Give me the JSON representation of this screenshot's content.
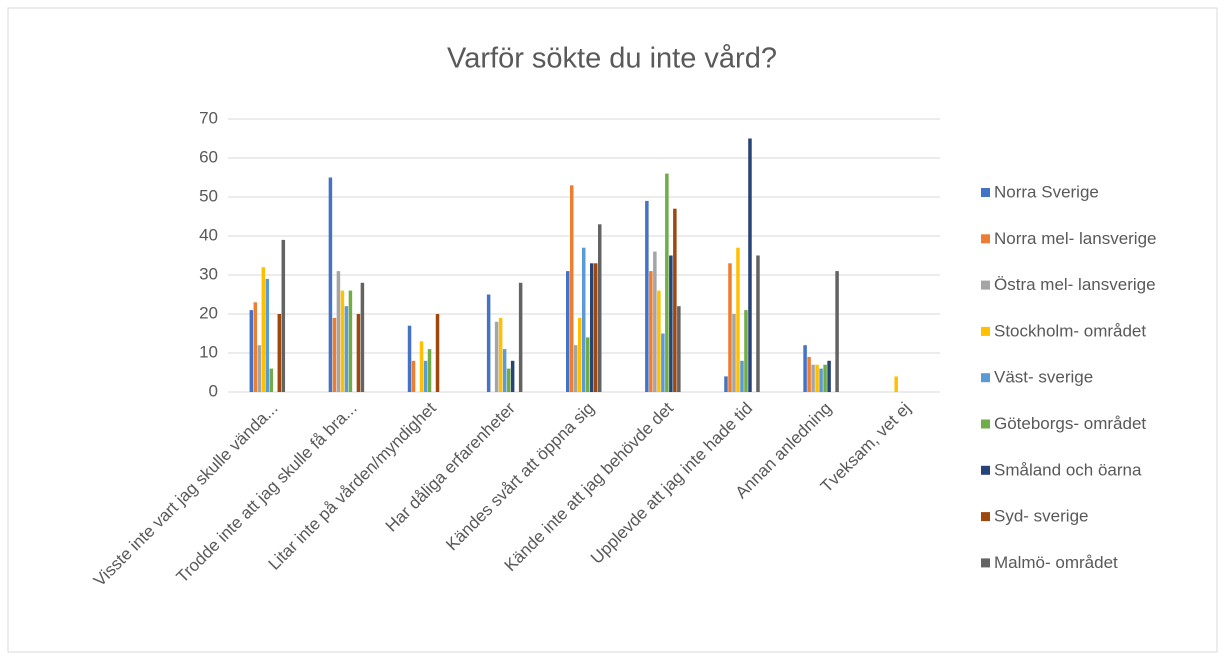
{
  "chart_data": {
    "type": "bar",
    "title": "Varför sökte du inte vård?",
    "categories": [
      "Visste inte vart jag skulle vända...",
      "Trodde inte att jag skulle få bra...",
      "Litar inte på vården/myndighet",
      "Har dåliga erfarenheter",
      "Kändes svårt att öppna sig",
      "Kände inte att jag behövde det",
      "Upplevde att jag inte hade tid",
      "Annan anledning",
      "Tveksam, vet ej"
    ],
    "series": [
      {
        "name": "Norra Sverige",
        "color": "#4472c4",
        "values": [
          21,
          55,
          17,
          25,
          31,
          49,
          4,
          12,
          0
        ]
      },
      {
        "name": "Norra mel- lansverige",
        "color": "#ed7d31",
        "values": [
          23,
          19,
          8,
          0,
          53,
          31,
          33,
          9,
          0
        ]
      },
      {
        "name": "Östra mel- lansverige",
        "color": "#a5a5a5",
        "values": [
          12,
          31,
          0,
          18,
          12,
          36,
          20,
          7,
          0
        ]
      },
      {
        "name": "Stockholm- området",
        "color": "#ffc000",
        "values": [
          32,
          26,
          13,
          19,
          19,
          26,
          37,
          7,
          4
        ]
      },
      {
        "name": "Väst- sverige",
        "color": "#5b9bd5",
        "values": [
          29,
          22,
          8,
          11,
          37,
          15,
          8,
          6,
          0
        ]
      },
      {
        "name": "Göteborgs- området",
        "color": "#70ad47",
        "values": [
          6,
          26,
          11,
          6,
          14,
          56,
          21,
          7,
          0
        ]
      },
      {
        "name": "Småland och öarna",
        "color": "#264478",
        "values": [
          0,
          0,
          0,
          8,
          33,
          35,
          65,
          8,
          0
        ]
      },
      {
        "name": "Syd- sverige",
        "color": "#9e480e",
        "values": [
          20,
          20,
          20,
          0,
          33,
          47,
          0,
          0,
          0
        ]
      },
      {
        "name": "Malmö- området",
        "color": "#636363",
        "values": [
          39,
          28,
          0,
          28,
          43,
          22,
          35,
          31,
          0
        ]
      }
    ],
    "ylim": [
      0,
      70
    ],
    "yticks": [
      0,
      10,
      20,
      30,
      40,
      50,
      60,
      70
    ],
    "grid": true,
    "legend": "right"
  }
}
